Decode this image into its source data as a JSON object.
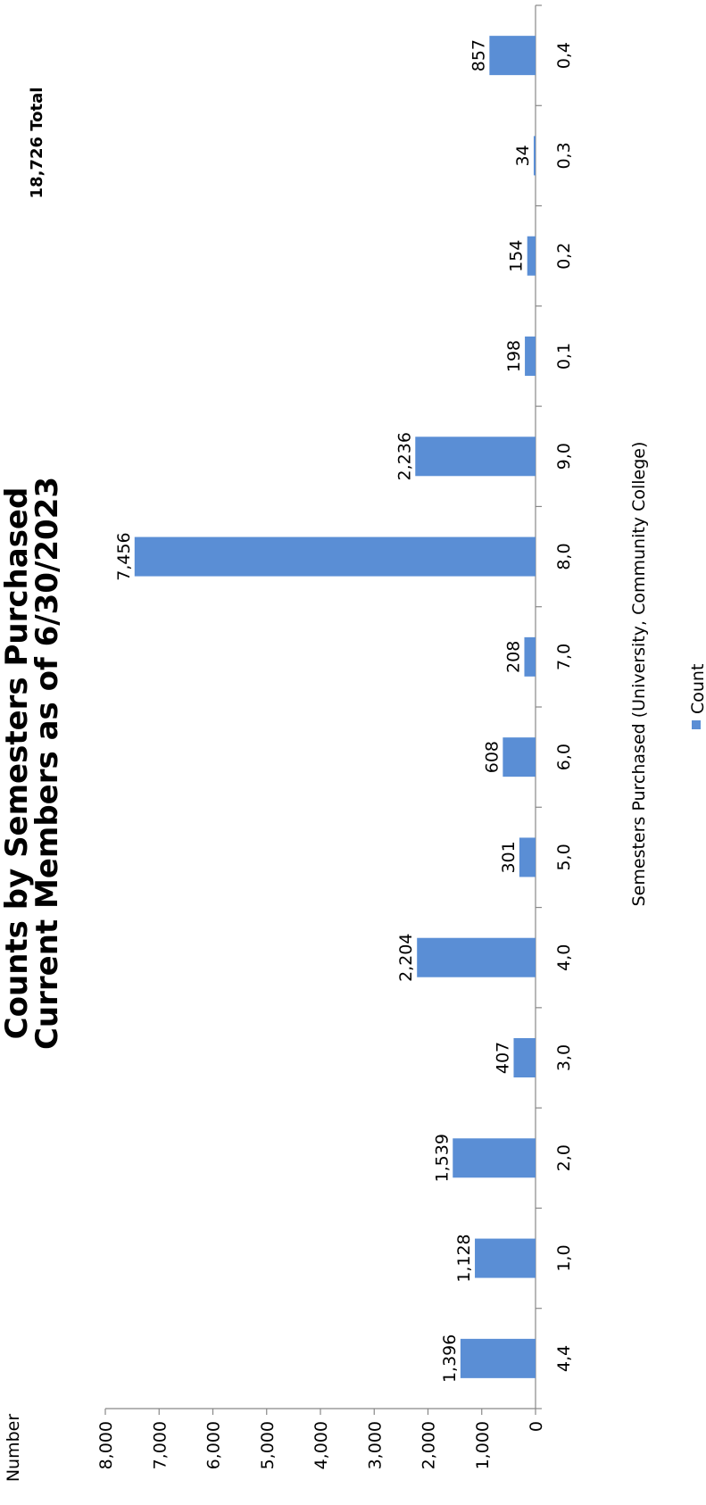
{
  "chart_data": {
    "type": "bar",
    "title": "Counts by Semesters Purchased",
    "subtitle": "Current Members as of 6/30/2023",
    "total_label": "18,726 Total",
    "xlabel": "Semesters Purchased (University, Community College)",
    "ylabel": "Number",
    "ylim": [
      0,
      8000
    ],
    "y_ticks": [
      "0",
      "1,000",
      "2,000",
      "3,000",
      "4,000",
      "5,000",
      "6,000",
      "7,000",
      "8,000"
    ],
    "y_tick_values": [
      0,
      1000,
      2000,
      3000,
      4000,
      5000,
      6000,
      7000,
      8000
    ],
    "categories": [
      "4,4",
      "1,0",
      "2,0",
      "3,0",
      "4,0",
      "5,0",
      "6,0",
      "7,0",
      "8,0",
      "9,0",
      "0,1",
      "0,2",
      "0,3",
      "0,4"
    ],
    "series": [
      {
        "name": "Count",
        "color": "#5A8ED5",
        "values": [
          1396,
          1128,
          1539,
          407,
          2204,
          301,
          608,
          208,
          7456,
          2236,
          198,
          154,
          34,
          857
        ],
        "labels": [
          "1,396",
          "1,128",
          "1,539",
          "407",
          "2,204",
          "301",
          "608",
          "208",
          "7,456",
          "2,236",
          "198",
          "154",
          "34",
          "857"
        ]
      }
    ],
    "legend": {
      "position": "bottom",
      "items": [
        "Count"
      ]
    },
    "grid": false,
    "orientation": "rotated-90"
  }
}
